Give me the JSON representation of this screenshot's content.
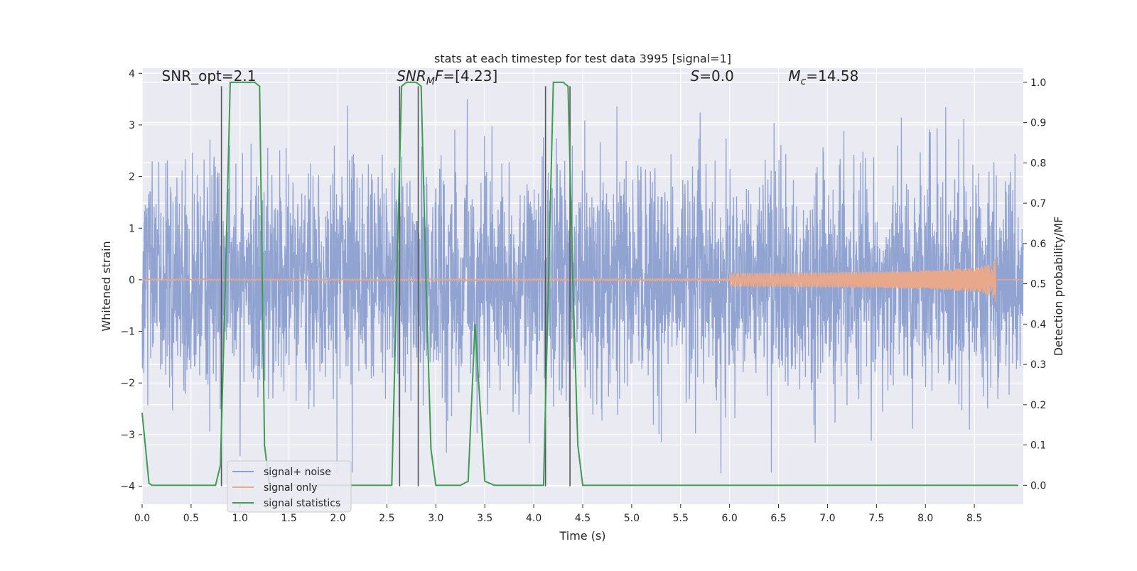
{
  "chart_data": {
    "type": "line",
    "title": "stats at each timestep for test data 3995 [signal=1]",
    "xlabel": "Time (s)",
    "ylabel": "Whitened strain",
    "y2label": "Detection probability/MF",
    "xlim": [
      0.0,
      9.0
    ],
    "ylim": [
      -4.35,
      4.1
    ],
    "y2lim": [
      -0.047,
      1.035
    ],
    "xticks": [
      "0.0",
      "0.5",
      "1.0",
      "1.5",
      "2.0",
      "2.5",
      "3.0",
      "3.5",
      "4.0",
      "4.5",
      "5.0",
      "5.5",
      "6.0",
      "6.5",
      "7.0",
      "7.5",
      "8.0",
      "8.5"
    ],
    "yticks": [
      "4",
      "3",
      "2",
      "1",
      "0",
      "−1",
      "−2",
      "−3",
      "−4"
    ],
    "y2ticks": [
      "1.0",
      "0.9",
      "0.8",
      "0.7",
      "0.6",
      "0.5",
      "0.4",
      "0.3",
      "0.2",
      "0.1",
      "0.0"
    ],
    "grid": true,
    "legend_position": "lower-left",
    "annotations": [
      {
        "text": "SNR_opt=2.1",
        "x": 0.2,
        "y": 3.85
      },
      {
        "parts": [
          {
            "t": "SNR",
            "i": true
          },
          {
            "t": "M",
            "i": true,
            "sub": true
          },
          {
            "t": "F",
            "i": true
          },
          {
            "t": "=[4.23]",
            "i": false
          }
        ],
        "x": 2.6,
        "y": 3.85
      },
      {
        "parts": [
          {
            "t": "S",
            "i": true
          },
          {
            "t": "=0.0",
            "i": false
          }
        ],
        "x": 5.6,
        "y": 3.85
      },
      {
        "parts": [
          {
            "t": "M",
            "i": true
          },
          {
            "t": "c",
            "i": true,
            "sub": true
          },
          {
            "t": "=14.58",
            "i": false
          }
        ],
        "x": 6.6,
        "y": 3.85
      }
    ],
    "series": [
      {
        "name": "signal+ noise",
        "color": "#8c9fcf",
        "kind": "noise",
        "sigma": 1.05
      },
      {
        "name": "signal only",
        "color": "#e8a88c",
        "kind": "chirp",
        "t_end": 8.72,
        "peak_amplitude": 0.45
      },
      {
        "name": "signal statistics",
        "color": "#3e9c52",
        "x": [
          0.0,
          0.07,
          0.1,
          0.2,
          0.3,
          0.5,
          0.75,
          0.8,
          0.85,
          0.9,
          0.95,
          1.05,
          1.15,
          1.2,
          1.25,
          1.3,
          1.5,
          1.8,
          2.0,
          2.2,
          2.5,
          2.55,
          2.6,
          2.65,
          2.7,
          2.8,
          2.85,
          2.9,
          2.95,
          3.0,
          3.1,
          3.25,
          3.33,
          3.4,
          3.5,
          3.6,
          4.0,
          4.05,
          4.1,
          4.15,
          4.2,
          4.3,
          4.35,
          4.4,
          4.45,
          4.5,
          4.6,
          5.0,
          6.0,
          7.0,
          8.0,
          8.5,
          8.95
        ],
        "y": [
          0.18,
          0.005,
          0.0,
          0.0,
          0.0,
          0.0,
          0.0,
          0.05,
          0.5,
          1.0,
          1.0,
          1.0,
          1.0,
          0.99,
          0.1,
          0.0,
          0.0,
          0.0,
          0.0,
          0.0,
          0.0,
          0.0,
          0.5,
          0.99,
          1.0,
          1.0,
          0.99,
          0.5,
          0.09,
          0.0,
          0.0,
          0.0,
          0.01,
          0.4,
          0.01,
          0.0,
          0.0,
          0.0,
          0.0,
          0.5,
          1.0,
          1.0,
          0.99,
          0.5,
          0.1,
          0.0,
          0.0,
          0.0,
          0.0,
          0.0,
          0.0,
          0.0,
          0.0
        ]
      }
    ],
    "vertical_lines": [
      {
        "x": 0.81,
        "y0": -4.0,
        "y1": 3.75
      },
      {
        "x": 2.63,
        "y0": -4.0,
        "y1": 3.75
      },
      {
        "x": 2.82,
        "y0": -4.0,
        "y1": 3.75
      },
      {
        "x": 4.12,
        "y0": -4.0,
        "y1": 3.75
      },
      {
        "x": 4.37,
        "y0": -4.0,
        "y1": 3.75
      }
    ],
    "plot_background": "#eaeaf2",
    "grid_color": "#ffffff",
    "vline_color": "#555555"
  }
}
